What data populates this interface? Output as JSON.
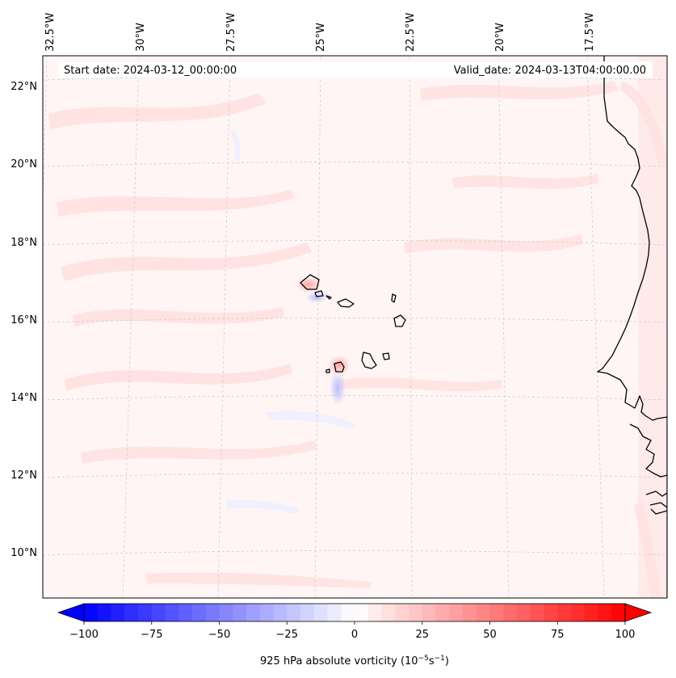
{
  "map": {
    "start_date_label": "Start date: 2024-03-12_00:00:00",
    "valid_date_label": "Valid_date: 2024-03-13T04:00:00.00",
    "lon_labels": [
      "32.5°W",
      "30°W",
      "27.5°W",
      "25°W",
      "22.5°W",
      "20°W",
      "17.5°W"
    ],
    "lat_labels": [
      "22°N",
      "20°N",
      "18°N",
      "16°N",
      "14°N",
      "12°N",
      "10°N"
    ],
    "background_color": "#fff5f5",
    "gridlines": "dashed-grey",
    "coastline_color": "#000000"
  },
  "colorbar": {
    "label_text": "925 hPa absolute vorticity (10",
    "label_exp1": "−5",
    "label_mid": "s",
    "label_exp2": "−1",
    "label_end": ")",
    "tick_labels": [
      "−100",
      "−75",
      "−50",
      "−25",
      "0",
      "25",
      "50",
      "75",
      "100"
    ],
    "min": -100,
    "max": 100,
    "step": 5,
    "cmap": "bwr",
    "low_color": "#0000ff",
    "mid_color": "#ffffff",
    "high_color": "#ff0000"
  }
}
